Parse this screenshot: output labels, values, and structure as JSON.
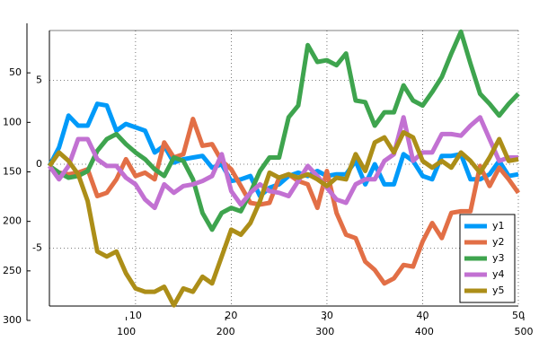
{
  "chart_data": {
    "type": "line",
    "x": [
      1,
      2,
      3,
      4,
      5,
      6,
      7,
      8,
      9,
      10,
      11,
      12,
      13,
      14,
      15,
      16,
      17,
      18,
      19,
      20,
      21,
      22,
      23,
      24,
      25,
      26,
      27,
      28,
      29,
      30,
      31,
      32,
      33,
      34,
      35,
      36,
      37,
      38,
      39,
      40,
      41,
      42,
      43,
      44,
      45,
      46,
      47,
      48,
      49,
      50
    ],
    "xlim": [
      1,
      50
    ],
    "xticks": [
      10,
      20,
      30,
      40,
      50
    ],
    "ylim": [
      -8.45,
      7.97
    ],
    "yticks": [
      -5,
      0,
      5
    ],
    "grid": true,
    "legend": "bottom right",
    "series": [
      {
        "name": "y1",
        "color": "#009af9",
        "values": [
          -0.1,
          1.0,
          2.9,
          2.3,
          2.3,
          3.6,
          3.5,
          2.0,
          2.4,
          2.2,
          2.0,
          0.7,
          1.1,
          0.1,
          0.3,
          0.4,
          0.5,
          -0.2,
          0,
          -1.0,
          -0.9,
          -0.7,
          -1.9,
          -1.4,
          -1.2,
          -0.7,
          -0.5,
          -0.7,
          -0.4,
          -0.7,
          -0.6,
          -0.6,
          0.2,
          -1.2,
          0,
          -1.2,
          -1.2,
          0.6,
          0.2,
          -0.7,
          -0.9,
          0.5,
          0.5,
          0.6,
          -0.9,
          -0.9,
          -0.6,
          0.2,
          -0.7,
          -0.6
        ]
      },
      {
        "name": "y2",
        "color": "#e26f46",
        "values": [
          -0.1,
          -0.5,
          -0.6,
          -0.5,
          -0.3,
          -1.9,
          -1.7,
          -0.9,
          0.3,
          -0.7,
          -0.5,
          -0.9,
          1.3,
          0.4,
          0.6,
          2.7,
          1.1,
          1.2,
          0.2,
          -0.3,
          -1.3,
          -2.3,
          -2.4,
          -2.3,
          -0.8,
          -0.6,
          -1.0,
          -1.2,
          -2.6,
          -0.4,
          -2.9,
          -4.2,
          -4.4,
          -5.8,
          -6.3,
          -7.1,
          -6.8,
          -6.0,
          -6.1,
          -4.6,
          -3.5,
          -4.4,
          -2.9,
          -2.8,
          -2.8,
          -0.1,
          -1.3,
          -0.2,
          -0.9,
          -1.7
        ]
      },
      {
        "name": "y3",
        "color": "#3ea44e",
        "values": [
          -0.1,
          -0.5,
          -0.8,
          -0.7,
          -0.4,
          0.8,
          1.5,
          1.8,
          1.2,
          0.7,
          0.3,
          -0.3,
          -0.7,
          0.4,
          0.2,
          -0.9,
          -2.9,
          -3.9,
          -2.9,
          -2.6,
          -2.8,
          -1.7,
          -0.4,
          0.4,
          0.4,
          2.8,
          3.5,
          7.1,
          6.1,
          6.2,
          5.9,
          6.6,
          3.8,
          3.7,
          2.3,
          3.1,
          3.1,
          4.7,
          3.8,
          3.5,
          4.3,
          5.2,
          6.6,
          7.9,
          6.0,
          4.2,
          3.6,
          2.9,
          3.6,
          4.2
        ]
      },
      {
        "name": "y4",
        "color": "#c271d2",
        "values": [
          -0.1,
          -0.9,
          -0.1,
          1.5,
          1.5,
          0.3,
          -0.1,
          -0.1,
          -0.8,
          -1.2,
          -2.1,
          -2.6,
          -1.2,
          -1.7,
          -1.3,
          -1.2,
          -1.0,
          -0.7,
          0.6,
          -1.6,
          -2.4,
          -1.7,
          -1.2,
          -1.6,
          -1.7,
          -1.9,
          -1.0,
          -0.1,
          -0.7,
          -1.4,
          -2.1,
          -2.3,
          -1.2,
          -0.9,
          -0.9,
          0.2,
          0.6,
          2.8,
          0.2,
          0.7,
          0.7,
          1.8,
          1.8,
          1.7,
          2.3,
          2.8,
          1.5,
          0.2,
          0.4,
          0.4
        ]
      },
      {
        "name": "y5",
        "color": "#ac8e18",
        "values": [
          -0.1,
          0.7,
          0.2,
          -0.6,
          -2.2,
          -5.2,
          -5.5,
          -5.2,
          -6.5,
          -7.4,
          -7.6,
          -7.6,
          -7.3,
          -8.4,
          -7.4,
          -7.6,
          -6.7,
          -7.1,
          -5.5,
          -3.9,
          -4.2,
          -3.5,
          -2.2,
          -0.5,
          -0.8,
          -0.6,
          -0.8,
          -0.6,
          -0.9,
          -1.3,
          -0.8,
          -0.9,
          0.6,
          -0.4,
          1.3,
          1.6,
          0.7,
          1.9,
          1.6,
          0.2,
          -0.2,
          0.2,
          -0.2,
          0.7,
          0.2,
          -0.5,
          0.4,
          1.5,
          0.2,
          0.3
        ]
      }
    ],
    "outer_axes": {
      "xlim": [
        0,
        500
      ],
      "xticks": [
        100,
        200,
        300,
        400,
        500
      ],
      "ylim": [
        300,
        0
      ],
      "yticks": [
        50,
        100,
        150,
        200,
        250,
        300
      ]
    }
  }
}
